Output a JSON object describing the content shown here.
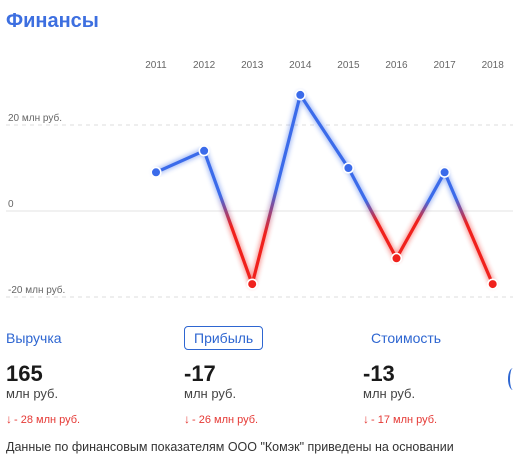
{
  "header": {
    "title": "Финансы"
  },
  "chart_data": {
    "type": "line",
    "categories": [
      "2011",
      "2012",
      "2013",
      "2014",
      "2015",
      "2016",
      "2017",
      "2018"
    ],
    "values": [
      9,
      14,
      -17,
      27,
      10,
      -11,
      9,
      -17
    ],
    "y_ticks": [
      {
        "value": 20,
        "label": "20 млн руб."
      },
      {
        "value": 0,
        "label": "0"
      },
      {
        "value": -20,
        "label": "-20 млн руб."
      }
    ],
    "ylim": [
      -22,
      30
    ],
    "positive_color": "#3B6BEA",
    "negative_color": "#F0211C",
    "grid": true
  },
  "metrics": [
    {
      "tab": "Выручка",
      "value": "165",
      "unit": "млн руб.",
      "delta": "- 28 млн руб.",
      "active": false
    },
    {
      "tab": "Прибыль",
      "value": "-17",
      "unit": "млн руб.",
      "delta": "- 26 млн руб.",
      "active": true
    },
    {
      "tab": "Стоимость",
      "value": "-13",
      "unit": "млн руб.",
      "delta": "- 17 млн руб.",
      "active": false
    }
  ],
  "footer": {
    "text": "Данные по финансовым показателям ООО \"Комэк\" приведены на основании"
  }
}
